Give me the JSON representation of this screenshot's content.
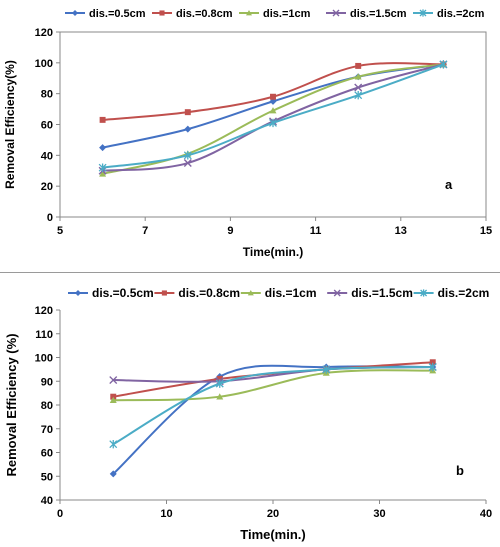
{
  "chart_data": [
    {
      "type": "line",
      "panel_label": "a",
      "xlabel": "Time(min.)",
      "ylabel": "Removal Efficiency(%)",
      "xlim": [
        5,
        15
      ],
      "ylim": [
        0,
        120
      ],
      "xticks": [
        5,
        7,
        9,
        11,
        13,
        15
      ],
      "yticks": [
        0,
        20,
        40,
        60,
        80,
        100,
        120
      ],
      "grid": false,
      "legend_position": "top",
      "x": [
        6,
        8,
        10,
        12,
        14
      ],
      "series": [
        {
          "name": "dis.=0.5cm",
          "color": "#4472c4",
          "marker": "diamond",
          "values": [
            45,
            57,
            75,
            91,
            99
          ]
        },
        {
          "name": "dis.=0.8cm",
          "color": "#c0504d",
          "marker": "square",
          "values": [
            63,
            68,
            78,
            98,
            99
          ]
        },
        {
          "name": "dis.=1cm",
          "color": "#9bbb59",
          "marker": "triangle",
          "values": [
            28,
            41,
            69,
            91,
            99
          ]
        },
        {
          "name": "dis.=1.5cm",
          "color": "#8064a2",
          "marker": "x",
          "values": [
            30,
            35,
            62,
            84,
            99
          ]
        },
        {
          "name": "dis.=2cm",
          "color": "#4bacc6",
          "marker": "star",
          "values": [
            32,
            40,
            61,
            79,
            99
          ]
        }
      ]
    },
    {
      "type": "line",
      "panel_label": "b",
      "xlabel": "Time(min.)",
      "ylabel": "Removal  Efficiency (%)",
      "xlim": [
        0,
        40
      ],
      "ylim": [
        40,
        120
      ],
      "xticks": [
        0,
        10,
        20,
        30,
        40
      ],
      "yticks": [
        40,
        50,
        60,
        70,
        80,
        90,
        100,
        110,
        120
      ],
      "grid": false,
      "legend_position": "top",
      "x": [
        5,
        15,
        25,
        35
      ],
      "series": [
        {
          "name": "dis.=0.5cm",
          "color": "#4472c4",
          "marker": "diamond",
          "values": [
            51,
            92,
            96,
            96
          ]
        },
        {
          "name": "dis.=0.8cm",
          "color": "#c0504d",
          "marker": "square",
          "values": [
            83.5,
            91,
            95,
            98
          ]
        },
        {
          "name": "dis.=1cm",
          "color": "#9bbb59",
          "marker": "triangle",
          "values": [
            82,
            83.5,
            93.5,
            94.5
          ]
        },
        {
          "name": "dis.=1.5cm",
          "color": "#8064a2",
          "marker": "x",
          "values": [
            90.5,
            90,
            95,
            96
          ]
        },
        {
          "name": "dis.=2cm",
          "color": "#4bacc6",
          "marker": "star",
          "values": [
            63.5,
            89,
            95,
            96
          ]
        }
      ]
    }
  ]
}
